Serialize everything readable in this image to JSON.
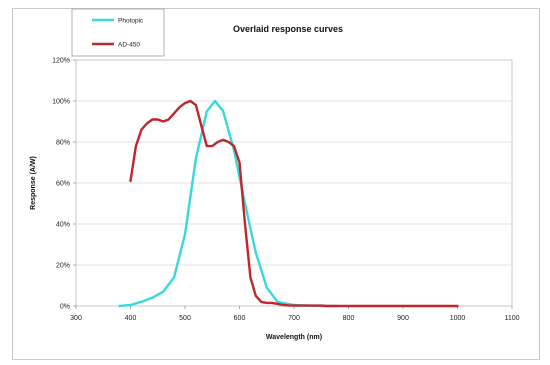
{
  "chart_data": {
    "type": "line",
    "title": "Overlaid response curves",
    "xlabel": "Wavelength (nm)",
    "ylabel": "Response (A/W)",
    "xlim": [
      300,
      1100
    ],
    "ylim": [
      0,
      120
    ],
    "xticks": [
      "300",
      "400",
      "500",
      "600",
      "700",
      "800",
      "900",
      "1000",
      "1100"
    ],
    "yticks": [
      "0%",
      "20%",
      "40%",
      "60%",
      "80%",
      "100%",
      "120%"
    ],
    "grid": "horizontal",
    "legend_position": "top-left",
    "series": [
      {
        "name": "Photopic",
        "color": "#38d8dc",
        "x": [
          380,
          400,
          420,
          440,
          460,
          480,
          500,
          520,
          540,
          555,
          570,
          590,
          610,
          630,
          650,
          670,
          700,
          720,
          740,
          760,
          780
        ],
        "y": [
          0,
          0.5,
          2,
          4,
          7,
          14,
          35,
          72,
          95,
          100,
          95,
          76,
          50,
          26,
          9,
          2,
          0.5,
          0.3,
          0.1,
          0,
          0
        ]
      },
      {
        "name": "AD-450",
        "color": "#c0272d",
        "x": [
          400,
          410,
          420,
          430,
          440,
          450,
          460,
          470,
          480,
          490,
          500,
          510,
          520,
          530,
          540,
          550,
          560,
          570,
          580,
          590,
          600,
          610,
          620,
          630,
          640,
          650,
          660,
          670,
          680,
          690,
          700,
          710,
          720,
          730,
          740,
          750,
          760,
          780,
          800,
          850,
          900,
          950,
          1000
        ],
        "y": [
          61,
          78,
          86,
          89,
          91,
          91,
          90,
          91,
          94,
          97,
          99,
          100,
          98,
          88,
          78,
          78,
          80,
          81,
          80,
          78,
          70,
          40,
          14,
          5,
          2,
          1.5,
          1.5,
          1,
          0.5,
          0.3,
          0.2,
          0.2,
          0.2,
          0.2,
          0.2,
          0.2,
          0,
          0,
          0,
          0,
          0,
          0,
          0
        ]
      }
    ]
  }
}
